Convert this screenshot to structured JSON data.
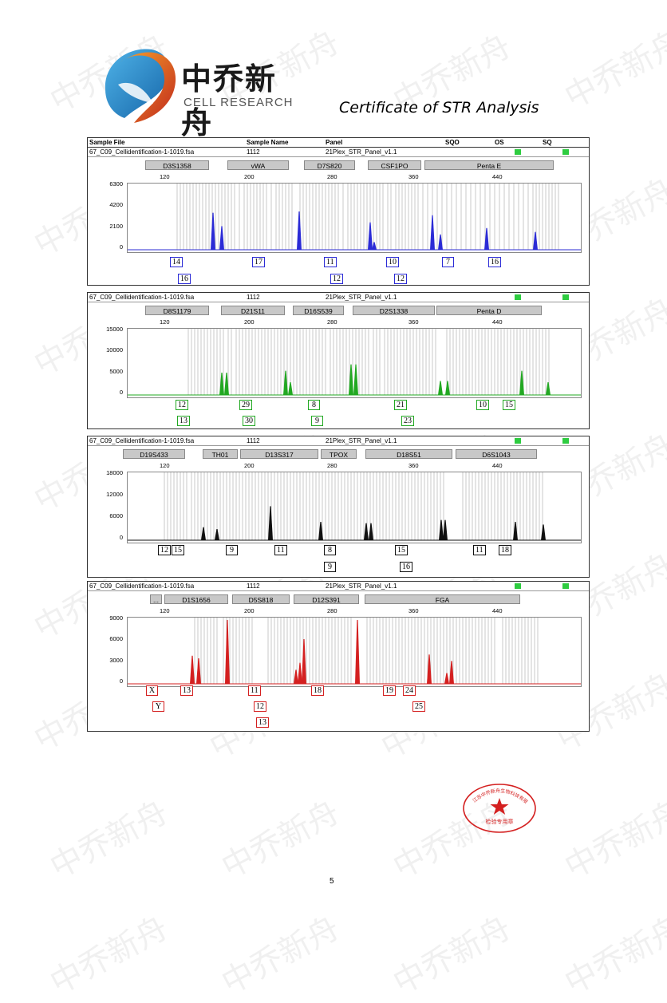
{
  "header": {
    "brand_cn": "中乔新舟",
    "brand_en": "CELL RESEARCH",
    "title": "Certificate of STR Analysis"
  },
  "watermark_text": "中乔新舟",
  "columns": {
    "sample_file": "Sample File",
    "sample_name": "Sample Name",
    "panel": "Panel",
    "sqo": "SQO",
    "os": "OS",
    "sq": "SQ"
  },
  "panels": [
    {
      "color": "#2b2bd6",
      "sample_file": "67_C09_Cellidentification-1-1019.fsa",
      "sample_name": "1112",
      "panel": "21Plex_STR_Panel_v1.1",
      "loci": [
        "D3S1358",
        "vWA",
        "D7S820",
        "CSF1PO",
        "Penta E"
      ],
      "x_ticks": [
        "120",
        "200",
        "280",
        "360",
        "440"
      ],
      "y_ticks": [
        "6300",
        "4200",
        "2100",
        "0"
      ],
      "alleles_row1": [
        "14",
        "17",
        "11",
        "10",
        "7",
        "16"
      ],
      "alleles_row2": [
        "16",
        "12",
        "12"
      ]
    },
    {
      "color": "#22a822",
      "sample_file": "67_C09_Cellidentification-1-1019.fsa",
      "sample_name": "1112",
      "panel": "21Plex_STR_Panel_v1.1",
      "loci": [
        "D8S1179",
        "D21S11",
        "D16S539",
        "D2S1338",
        "Penta D"
      ],
      "x_ticks": [
        "120",
        "200",
        "280",
        "360",
        "440"
      ],
      "y_ticks": [
        "15000",
        "10000",
        "5000",
        "0"
      ],
      "alleles_row1": [
        "12",
        "29",
        "8",
        "21",
        "10",
        "15"
      ],
      "alleles_row2": [
        "13",
        "30",
        "9",
        "23"
      ]
    },
    {
      "color": "#111111",
      "sample_file": "67_C09_Cellidentification-1-1019.fsa",
      "sample_name": "1112",
      "panel": "21Plex_STR_Panel_v1.1",
      "loci": [
        "D19S433",
        "TH01",
        "D13S317",
        "TPOX",
        "D18S51",
        "D6S1043"
      ],
      "x_ticks": [
        "120",
        "200",
        "280",
        "360",
        "440"
      ],
      "y_ticks": [
        "18000",
        "12000",
        "6000",
        "0"
      ],
      "alleles_row1": [
        "12",
        "15",
        "9",
        "11",
        "8",
        "15",
        "11",
        "18"
      ],
      "alleles_row2": [
        "9",
        "16"
      ]
    },
    {
      "color": "#d42020",
      "sample_file": "67_C09_Cellidentification-1-1019.fsa",
      "sample_name": "1112",
      "panel": "21Plex_STR_Panel_v1.1",
      "loci": [
        "...",
        "D1S1656",
        "D5S818",
        "D12S391",
        "FGA"
      ],
      "x_ticks": [
        "120",
        "200",
        "280",
        "360",
        "440"
      ],
      "y_ticks": [
        "9000",
        "6000",
        "3000",
        "0"
      ],
      "alleles_row1": [
        "X",
        "13",
        "11",
        "18",
        "19",
        "24"
      ],
      "alleles_row2": [
        "Y",
        "12",
        "25"
      ],
      "alleles_row3": [
        "13"
      ]
    }
  ],
  "seal": {
    "text": "检验专用章"
  },
  "page_number": "5"
}
